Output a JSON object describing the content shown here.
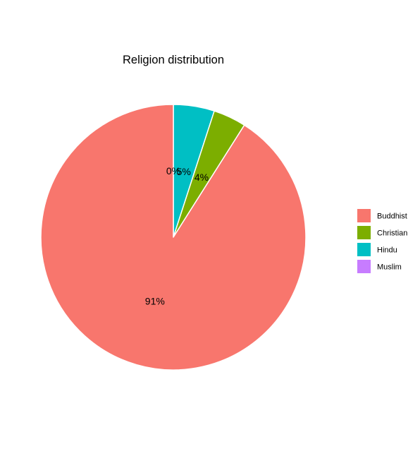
{
  "chart_data": {
    "type": "pie",
    "title": "Religion distribution",
    "categories": [
      "Buddhist",
      "Christian",
      "Hindu",
      "Muslim"
    ],
    "values": [
      91,
      4,
      5,
      0
    ],
    "labels": [
      "91%",
      "4%",
      "5%",
      "0%"
    ],
    "colors": [
      "#F8766D",
      "#7CAE00",
      "#00BFC4",
      "#C77CFF"
    ],
    "slice_order": [
      "Muslim",
      "Hindu",
      "Christian",
      "Buddhist"
    ],
    "direction": "clockwise",
    "start": "top",
    "legend_position": "right"
  }
}
